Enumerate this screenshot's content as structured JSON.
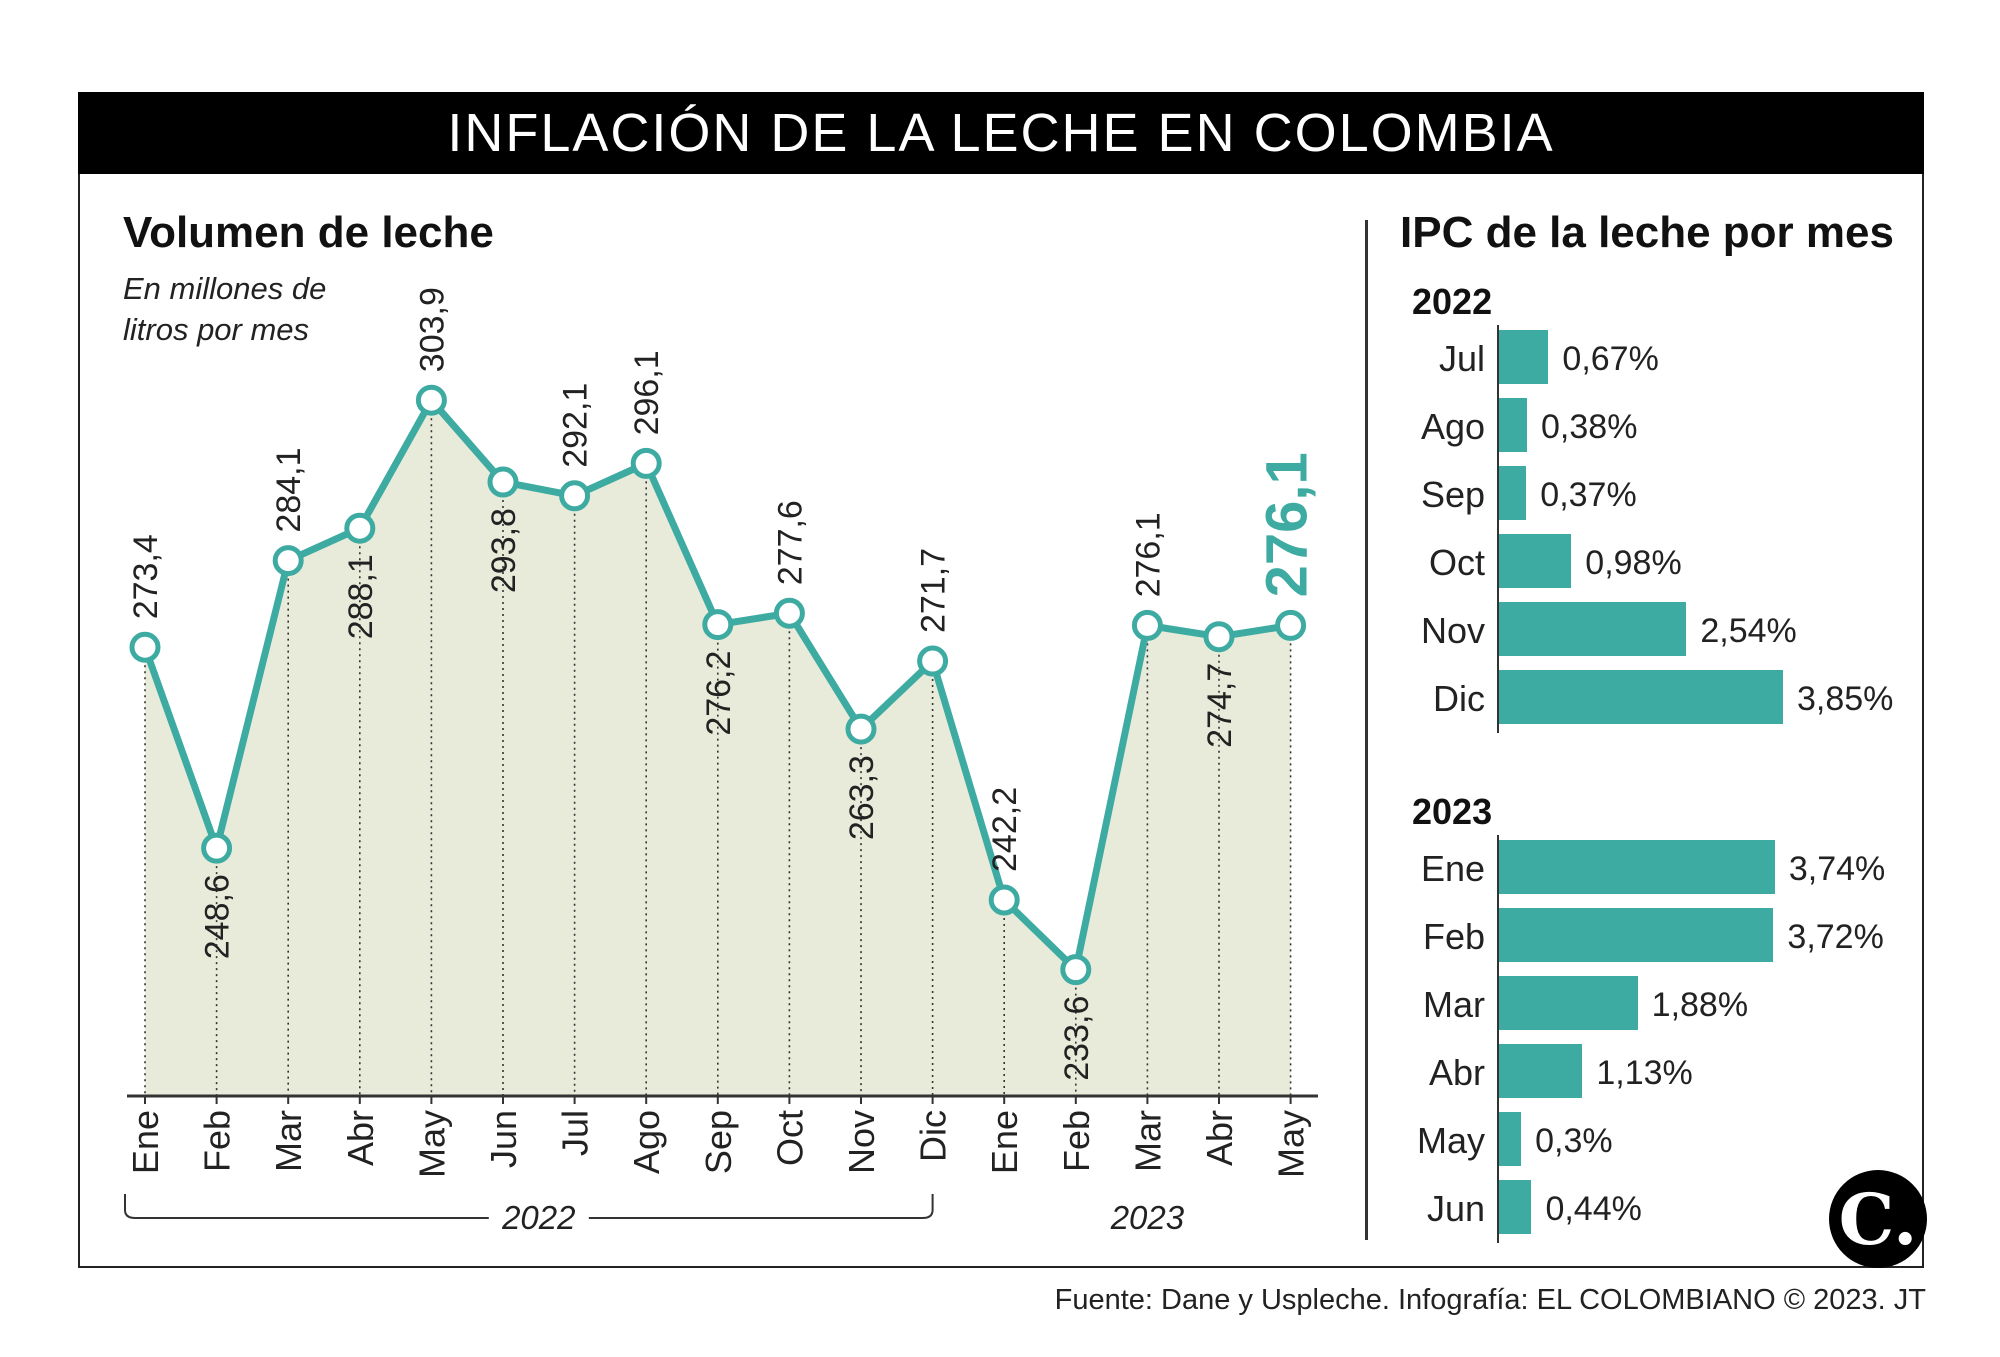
{
  "header": {
    "title": "INFLACIÓN DE LA LECHE EN COLOMBIA"
  },
  "left_panel": {
    "title": "Volumen de leche",
    "subtitle_line1": "En millones de",
    "subtitle_line2": "litros por mes"
  },
  "right_panel": {
    "title": "IPC de la leche por mes"
  },
  "colors": {
    "teal": "#3eaba3",
    "area": "#e8ebd9",
    "highlight": "#3eaba3"
  },
  "chart_data": [
    {
      "type": "line",
      "title": "Volumen de leche",
      "subtitle": "En millones de litros por mes",
      "categories": [
        "Ene",
        "Feb",
        "Mar",
        "Abr",
        "May",
        "Jun",
        "Jul",
        "Ago",
        "Sep",
        "Oct",
        "Nov",
        "Dic",
        "Ene",
        "Feb",
        "Mar",
        "Abr",
        "May"
      ],
      "values": [
        273.4,
        248.6,
        284.1,
        288.1,
        303.9,
        293.8,
        292.1,
        296.1,
        276.2,
        277.6,
        263.3,
        271.7,
        242.2,
        233.6,
        276.1,
        274.7,
        276.1
      ],
      "value_labels": [
        "273,4",
        "248,6",
        "284,1",
        "288,1",
        "303,9",
        "293,8",
        "292,1",
        "296,1",
        "276,2",
        "277,6",
        "263,3",
        "271,7",
        "242,2",
        "233,6",
        "276,1",
        "274,7",
        "276,1"
      ],
      "year_groups": [
        {
          "label": "2022",
          "from": 0,
          "to": 11
        },
        {
          "label": "2023",
          "from": 12,
          "to": 16
        }
      ],
      "ylim": [
        218,
        318
      ],
      "highlight_last": true,
      "fill": "area"
    },
    {
      "type": "bar",
      "orientation": "horizontal",
      "title": "IPC de la leche por mes",
      "groups": [
        {
          "year": "2022",
          "categories": [
            "Jul",
            "Ago",
            "Sep",
            "Oct",
            "Nov",
            "Dic"
          ],
          "values": [
            0.67,
            0.38,
            0.37,
            0.98,
            2.54,
            3.85
          ],
          "labels": [
            "0,67%",
            "0,38%",
            "0,37%",
            "0,98%",
            "2,54%",
            "3,85%"
          ]
        },
        {
          "year": "2023",
          "categories": [
            "Ene",
            "Feb",
            "Mar",
            "Abr",
            "May",
            "Jun"
          ],
          "values": [
            3.74,
            3.72,
            1.88,
            1.13,
            0.3,
            0.44
          ],
          "labels": [
            "3,74%",
            "3,72%",
            "1,88%",
            "1,13%",
            "0,3%",
            "0,44%"
          ]
        }
      ],
      "xlim": [
        0,
        3.85
      ]
    }
  ],
  "footer": {
    "source": "Fuente: Dane y Uspleche. Infografía: EL COLOMBIANO © 2023. JT",
    "logo_letter": "C."
  }
}
